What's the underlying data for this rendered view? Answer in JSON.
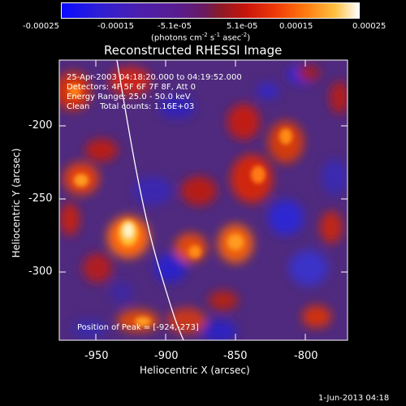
{
  "colorbar": {
    "ticks": [
      "-0.00025",
      "-0.00015",
      "-5.1e-05",
      "5.1e-05",
      "0.00015",
      "0.00025"
    ],
    "unit_main": "(photons cm",
    "unit_exp1": "-2",
    "unit_mid": " s",
    "unit_exp2": "-1",
    "unit_end": " asec",
    "unit_exp3": "-2",
    "unit_close": ")"
  },
  "title": "Reconstructed RHESSI Image",
  "info": {
    "time": "25-Apr-2003 04:18:20.000 to 04:19:52.000",
    "detectors": "Detectors: 4F 5F 6F 7F 8F, Att 0",
    "energy": "Energy Range: 25.0 - 50.0 keV",
    "clean": "Clean    Total counts: 1.16E+03"
  },
  "peak": "Position of Peak = [-924,-273]",
  "axes": {
    "xlabel": "Heliocentric X (arcsec)",
    "ylabel": "Heliocentric Y (arcsec)",
    "xticks": [
      "-950",
      "-900",
      "-850",
      "-800"
    ],
    "yticks": [
      "-200",
      "-250",
      "-300"
    ]
  },
  "footer": "1-Jun-2013 04:18",
  "colors": {
    "negative": "#2b20c8",
    "mid": "#5a2a8a",
    "positive_low": "#c81e14",
    "positive_high": "#ff8c10",
    "peak": "#fff6c0"
  }
}
